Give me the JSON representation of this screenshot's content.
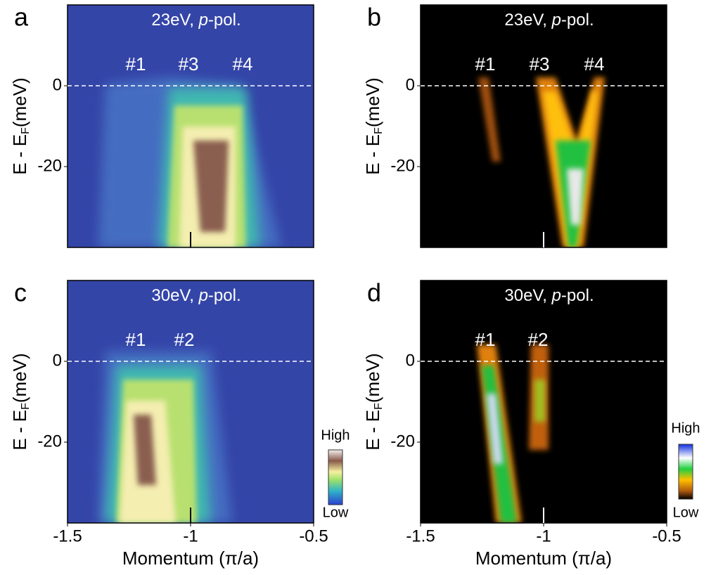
{
  "chart_data": [
    {
      "type": "image",
      "panel": "a",
      "title_parts": [
        "23eV, ",
        "p",
        "-pol."
      ],
      "ylabel_parts": [
        "E - E",
        "F",
        "(meV)"
      ],
      "xlim": [
        -1.5,
        -0.5
      ],
      "ylim": [
        -40,
        20
      ],
      "yticks": [
        0,
        -20
      ],
      "band_labels": [
        "#1",
        "#3",
        "#4"
      ]
    },
    {
      "type": "image",
      "panel": "b",
      "title_parts": [
        "23eV, ",
        "p",
        "-pol."
      ],
      "ylabel_parts": [
        "E - E",
        "F",
        "(meV)"
      ],
      "xlim": [
        -1.5,
        -0.5
      ],
      "ylim": [
        -40,
        20
      ],
      "yticks": [
        0,
        -20
      ],
      "band_labels": [
        "#1",
        "#3",
        "#4"
      ]
    },
    {
      "type": "image",
      "panel": "c",
      "title_parts": [
        "30eV, ",
        "p",
        "-pol."
      ],
      "ylabel_parts": [
        "E - E",
        "F",
        "(meV)"
      ],
      "xlabel": "Momentum (π/a)",
      "xlim": [
        -1.5,
        -0.5
      ],
      "xticks": [
        -1.5,
        -1,
        -0.5
      ],
      "ylim": [
        -40,
        20
      ],
      "yticks": [
        0,
        -20
      ],
      "band_labels": [
        "#1",
        "#2"
      ],
      "colorbar_labels": [
        "High",
        "Low"
      ]
    },
    {
      "type": "image",
      "panel": "d",
      "title_parts": [
        "30eV, ",
        "p",
        "-pol."
      ],
      "ylabel_parts": [
        "E - E",
        "F",
        "(meV)"
      ],
      "xlabel": "Momentum (π/a)",
      "xlim": [
        -1.5,
        -0.5
      ],
      "xticks": [
        -1.5,
        -1,
        -0.5
      ],
      "ylim": [
        -40,
        20
      ],
      "yticks": [
        0,
        -20
      ],
      "band_labels": [
        "#1",
        "#2"
      ],
      "colorbar_labels": [
        "High",
        "Low"
      ]
    }
  ]
}
